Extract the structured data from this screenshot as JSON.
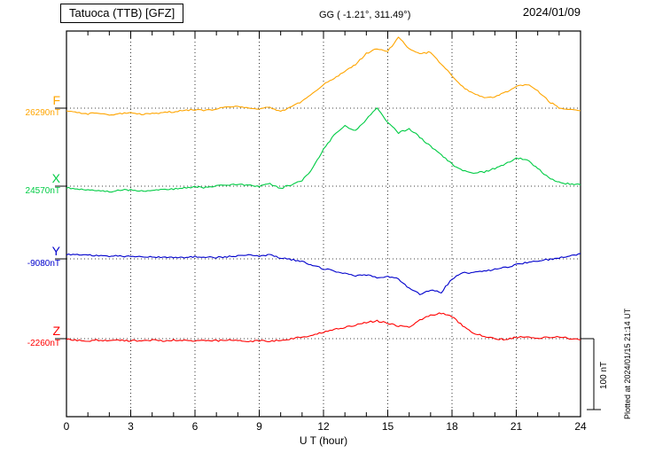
{
  "header": {
    "title": "Tatuoca (TTB)  [GFZ]",
    "coordinates": "GG ( -1.21°, 311.49°)",
    "date": "2024/01/09"
  },
  "scale_bar": {
    "label": "100 nT"
  },
  "footer": {
    "plotted_note": "Plotted at 2024/01/15 21:14 UT"
  },
  "chart_data": {
    "type": "line",
    "xlabel": "U T (hour)",
    "x_range_hours": [
      0,
      24
    ],
    "x_ticks": [
      0,
      3,
      6,
      9,
      12,
      15,
      18,
      21,
      24
    ],
    "x_start_hours": 0,
    "x_step_hours": 0.5,
    "scale_reference_nT": 100,
    "grid": "dotted vertical every 3h, dotted horizontal at each baseline",
    "series": [
      {
        "name": "F",
        "baseline_label": "26290nT",
        "baseline_nT": 26290,
        "color": "#FFA500",
        "offsets_nT": [
          -5,
          -6,
          -8,
          -7,
          -9,
          -8,
          -7,
          -9,
          -8,
          -6,
          -5,
          -3,
          -2,
          -3,
          -1,
          1,
          2,
          0,
          -1,
          1,
          -5,
          2,
          9,
          21,
          34,
          42,
          52,
          62,
          77,
          84,
          80,
          100,
          84,
          77,
          79,
          62,
          46,
          30,
          21,
          15,
          16,
          22,
          31,
          34,
          25,
          10,
          0,
          -2,
          -4
        ]
      },
      {
        "name": "X",
        "baseline_label": "24570nT",
        "baseline_nT": 24570,
        "color": "#00CC44",
        "offsets_nT": [
          -2,
          -4,
          -5,
          -6,
          -8,
          -6,
          -5,
          -7,
          -6,
          -5,
          -4,
          -2,
          -1,
          -2,
          0,
          2,
          3,
          1,
          0,
          3,
          -3,
          2,
          8,
          25,
          52,
          72,
          85,
          78,
          94,
          110,
          90,
          75,
          81,
          69,
          56,
          44,
          31,
          22,
          19,
          20,
          25,
          31,
          40,
          37,
          25,
          12,
          5,
          3,
          2
        ]
      },
      {
        "name": "Y",
        "baseline_label": "-9080nT",
        "baseline_nT": -9080,
        "color": "#0000CC",
        "offsets_nT": [
          6,
          6,
          5,
          5,
          4,
          4,
          3,
          3,
          3,
          2,
          2,
          2,
          3,
          2,
          2,
          3,
          4,
          5,
          4,
          6,
          1,
          -1,
          -4,
          -9,
          -14,
          -17,
          -21,
          -24,
          -23,
          -26,
          -25,
          -28,
          -42,
          -50,
          -44,
          -47,
          -28,
          -20,
          -19,
          -17,
          -15,
          -12,
          -8,
          -5,
          -3,
          -1,
          1,
          4,
          7
        ]
      },
      {
        "name": "Z",
        "baseline_label": "-2260nT",
        "baseline_nT": -2260,
        "color": "#FF0000",
        "offsets_nT": [
          -1,
          -2,
          -3,
          -2,
          -3,
          -2,
          -3,
          -3,
          -2,
          -3,
          -2,
          -2,
          -3,
          -2,
          -3,
          -2,
          -3,
          -4,
          -3,
          -4,
          -2,
          0,
          2,
          5,
          9,
          13,
          16,
          19,
          23,
          25,
          22,
          18,
          16,
          26,
          33,
          36,
          31,
          18,
          8,
          3,
          0,
          -1,
          2,
          3,
          0,
          2,
          3,
          0,
          -1
        ]
      }
    ]
  }
}
